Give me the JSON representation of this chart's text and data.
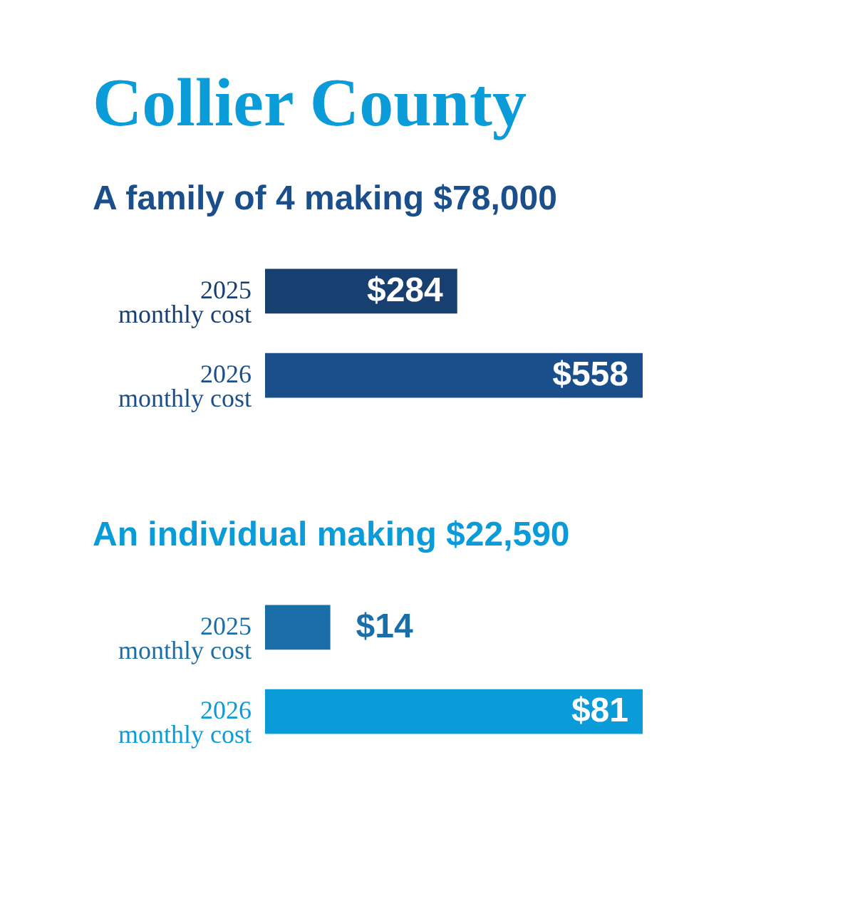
{
  "chart_data": [
    {
      "type": "bar",
      "orientation": "horizontal",
      "title": "Collier County",
      "subtitle": "A family of 4 making $78,000",
      "categories": [
        "2025\nmonthly cost",
        "2026\nmonthly cost"
      ],
      "values": [
        284,
        558
      ],
      "colors": [
        "#173f70",
        "#1b4f8c"
      ],
      "value_labels": [
        "$284",
        "$558"
      ]
    },
    {
      "type": "bar",
      "orientation": "horizontal",
      "subtitle": "An individual making $22,590",
      "categories": [
        "2025\nmonthly cost",
        "2026\nmonthly cost"
      ],
      "values": [
        14,
        81
      ],
      "colors": [
        "#1a6fa8",
        "#0a9bd9"
      ],
      "value_labels": [
        "$14",
        "$81"
      ]
    }
  ]
}
